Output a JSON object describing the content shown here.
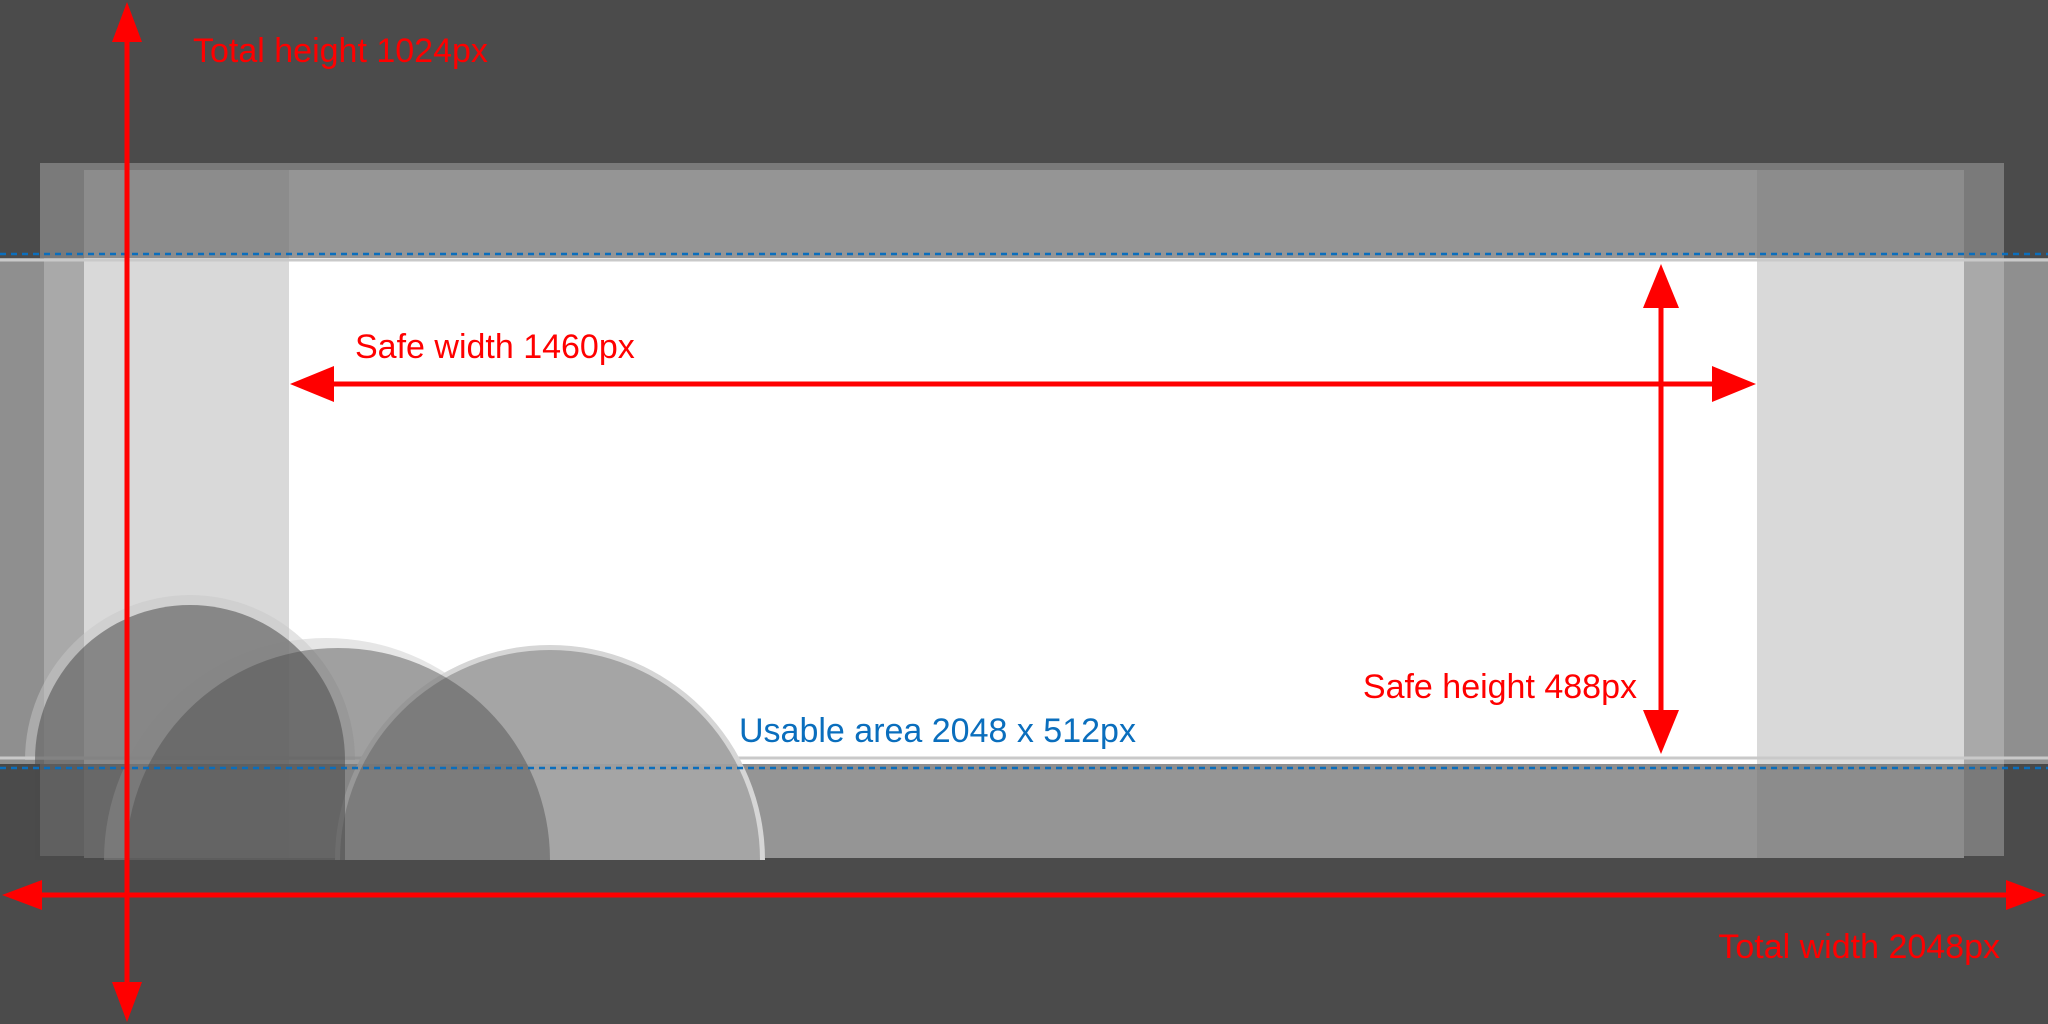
{
  "labels": {
    "total_height": "Total height 1024px",
    "total_width": "Total width 2048px",
    "safe_width": "Safe width 1460px",
    "safe_height": "Safe height 488px",
    "usable_area": "Usable area 2048 x 512px"
  },
  "colors": {
    "background": "#4b4b4b",
    "measure_arrows": "#ff0000",
    "usable_area_outline": "#0a6ebd",
    "safe_area": "#ffffff"
  }
}
